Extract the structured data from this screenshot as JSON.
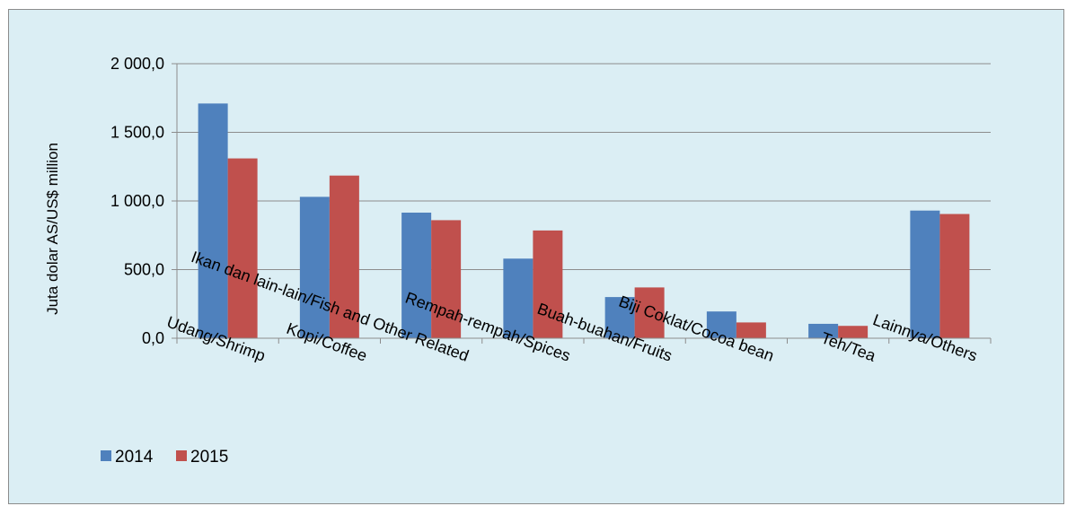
{
  "chart_data": {
    "type": "bar",
    "categories": [
      "Udang/Shrimp",
      "Kopi/Coffee",
      "Ikan dan lain-lain/Fish and Other Related",
      "Rempah-rempah/Spices",
      "Buah-buahan/Fruits",
      "Biji Coklat/Cocoa bean",
      "Teh/Tea",
      "Lainnya/Others"
    ],
    "series": [
      {
        "name": "2014",
        "color": "#4f81bd",
        "values": [
          1710,
          1030,
          915,
          580,
          300,
          195,
          105,
          930
        ]
      },
      {
        "name": "2015",
        "color": "#c0504d",
        "values": [
          1310,
          1185,
          860,
          785,
          370,
          115,
          90,
          905
        ]
      }
    ],
    "ylabel": "Juta dolar AS/US$ million",
    "ylim": [
      0,
      2000
    ],
    "yticks": [
      0,
      500,
      1000,
      1500,
      2000
    ],
    "ytick_labels": [
      "0,0",
      "500,0",
      "1 000,0",
      "1 500,0",
      "2 000,0"
    ],
    "grid": true,
    "legend_position": "bottom-left"
  }
}
